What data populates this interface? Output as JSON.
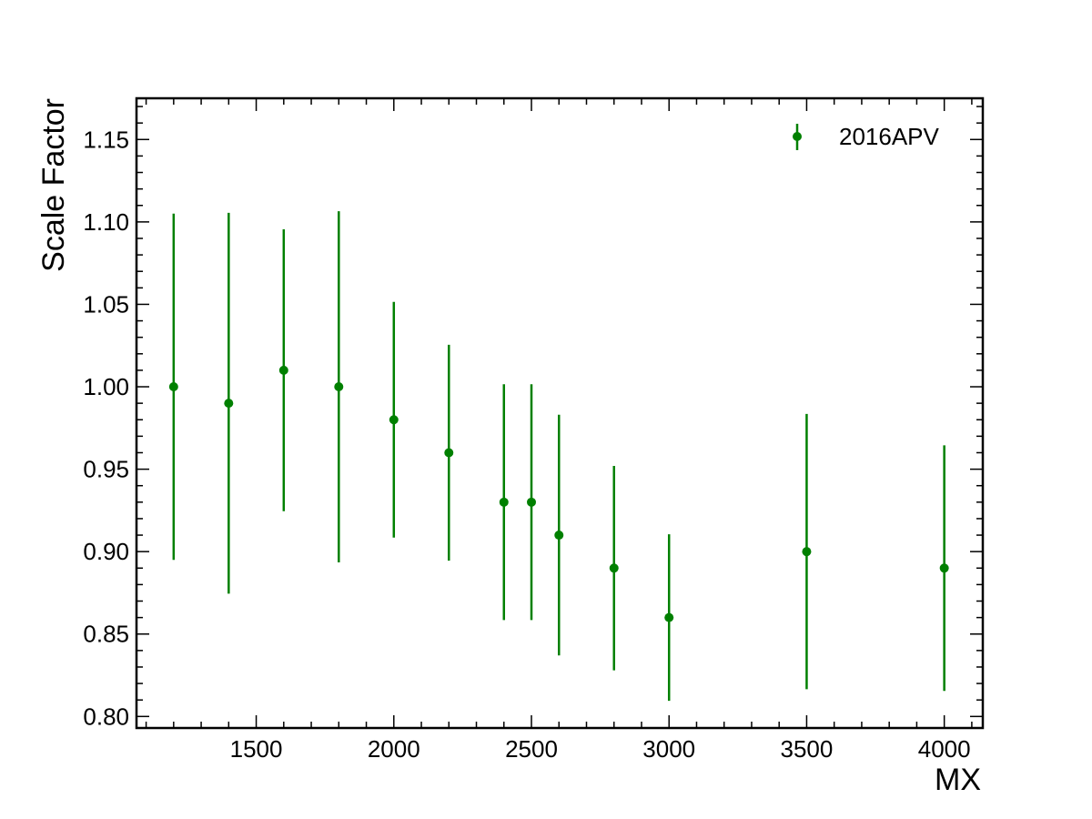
{
  "chart_data": {
    "type": "scatter",
    "xlabel": "MX",
    "ylabel": "Scale Factor",
    "xlim": [
      1065,
      4140
    ],
    "ylim": [
      0.793,
      1.175
    ],
    "xticks": [
      1500,
      2000,
      2500,
      3000,
      3500,
      4000
    ],
    "xtick_labels": [
      "1500",
      "2000",
      "2500",
      "3000",
      "3500",
      "4000"
    ],
    "yticks": [
      0.8,
      0.85,
      0.9,
      0.95,
      1.0,
      1.05,
      1.1,
      1.15
    ],
    "ytick_labels": [
      "0.80",
      "0.85",
      "0.90",
      "0.95",
      "1.00",
      "1.05",
      "1.10",
      "1.15"
    ],
    "grid": false,
    "legend_position": "top-right",
    "series": [
      {
        "name": "2016APV",
        "color": "#008000",
        "x": [
          1200,
          1400,
          1600,
          1800,
          2000,
          2200,
          2400,
          2500,
          2600,
          2800,
          3000,
          3500,
          4000
        ],
        "y": [
          1.0,
          0.99,
          1.01,
          1.0,
          0.98,
          0.96,
          0.93,
          0.93,
          0.91,
          0.89,
          0.86,
          0.9,
          0.89
        ],
        "yerr": [
          0.105,
          0.1155,
          0.0855,
          0.1065,
          0.0715,
          0.0655,
          0.0715,
          0.0715,
          0.073,
          0.062,
          0.0505,
          0.0835,
          0.0745
        ]
      }
    ]
  }
}
